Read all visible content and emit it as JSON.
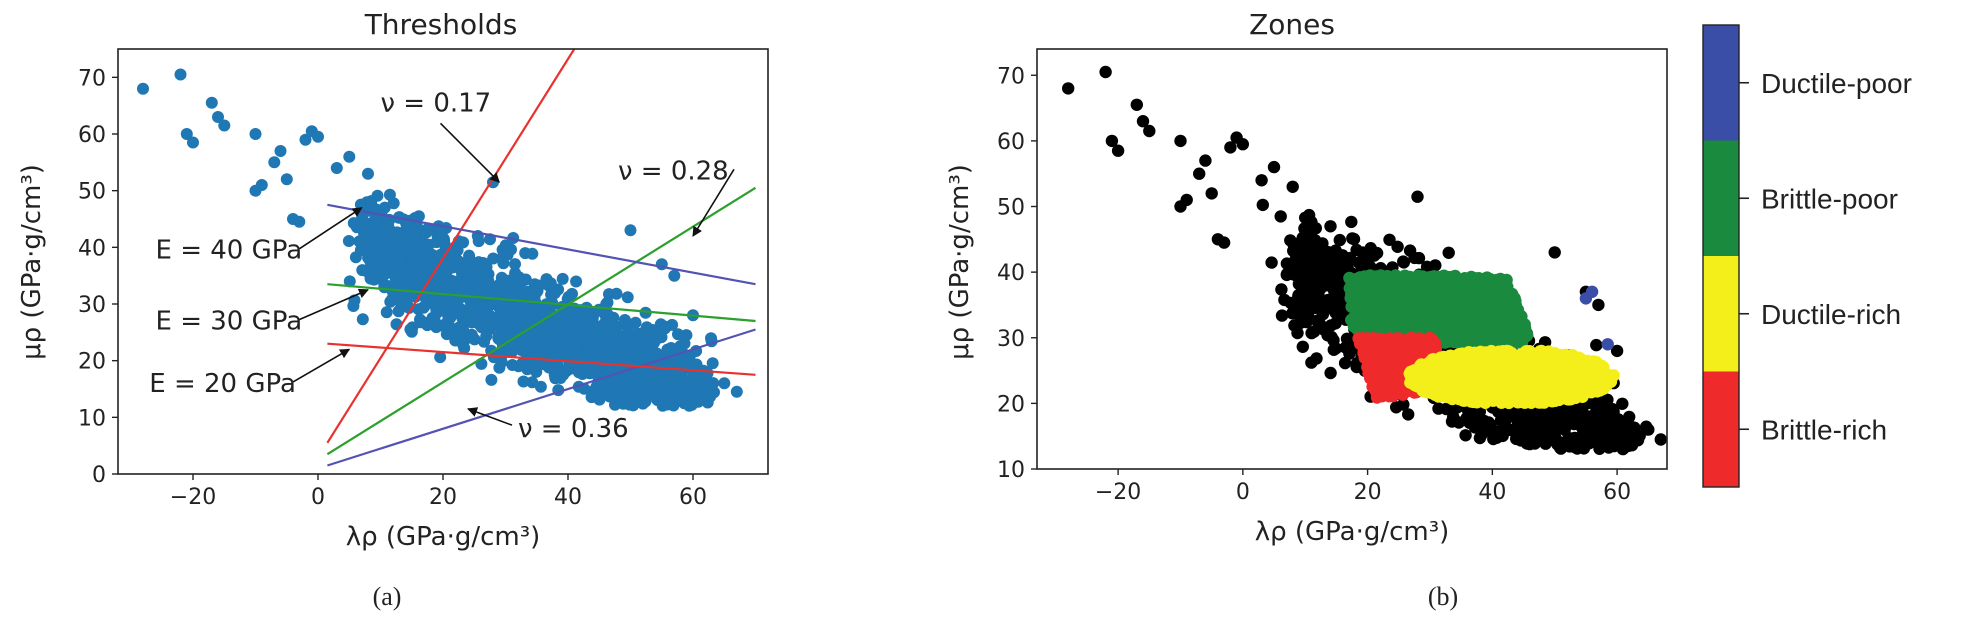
{
  "chart_data": [
    {
      "type": "scatter",
      "title": "Thresholds",
      "xlabel": "λρ (GPa·g/cm³)",
      "ylabel": "μρ (GPa·g/cm³)",
      "xlim": [
        -32,
        72
      ],
      "ylim": [
        0,
        75
      ],
      "xticks": [
        -20,
        0,
        20,
        40,
        60
      ],
      "yticks": [
        0,
        10,
        20,
        30,
        40,
        50,
        60,
        70
      ],
      "point_color": "#1f77b4",
      "cloud": {
        "regression": {
          "x0": 20,
          "y0": 34,
          "slope": -0.52
        },
        "x_range": [
          8,
          62
        ],
        "band_sd": 4.5,
        "count": 1500,
        "outliers": [
          [
            -28,
            68
          ],
          [
            -22,
            70.5
          ],
          [
            -21,
            60
          ],
          [
            -20,
            58.5
          ],
          [
            -17,
            65.5
          ],
          [
            -16,
            63
          ],
          [
            -15,
            61.5
          ],
          [
            -10,
            60
          ],
          [
            -10,
            50
          ],
          [
            -9,
            51
          ],
          [
            -7,
            55
          ],
          [
            -6,
            57
          ],
          [
            -5,
            52
          ],
          [
            -4,
            45
          ],
          [
            -3,
            44.5
          ],
          [
            -2,
            59
          ],
          [
            -1,
            60.5
          ],
          [
            0,
            59.5
          ],
          [
            3,
            54
          ],
          [
            5,
            56
          ],
          [
            8,
            53
          ],
          [
            65,
            16
          ],
          [
            67,
            14.5
          ],
          [
            28,
            51.5
          ],
          [
            50,
            43
          ],
          [
            55,
            37
          ],
          [
            57,
            35
          ],
          [
            60,
            28
          ]
        ]
      },
      "lines": [
        {
          "label": "ν = 0.17",
          "color": "#e8322e",
          "p1": [
            1.5,
            5.5
          ],
          "p2": [
            41,
            75
          ]
        },
        {
          "label": "ν = 0.28",
          "color": "#2ca02c",
          "p1": [
            1.5,
            3.5
          ],
          "p2": [
            70,
            50.5
          ]
        },
        {
          "label": "ν = 0.36",
          "color": "#5353b3",
          "p1": [
            1.5,
            1.5
          ],
          "p2": [
            70,
            25.5
          ]
        },
        {
          "label": "E = 40 GPa",
          "color": "#5353b3",
          "p1": [
            1.5,
            47.5
          ],
          "p2": [
            70,
            33.5
          ]
        },
        {
          "label": "E = 30 GPa",
          "color": "#2ca02c",
          "p1": [
            1.5,
            33.5
          ],
          "p2": [
            70,
            27
          ]
        },
        {
          "label": "E = 20 GPa",
          "color": "#e8322e",
          "p1": [
            1.5,
            23
          ],
          "p2": [
            70,
            17.5
          ]
        }
      ],
      "annotations": [
        {
          "text": "ν =  0.17",
          "text_at": [
            10,
            64
          ],
          "arrow_to": [
            29,
            51.5
          ]
        },
        {
          "text": "ν = 0.28",
          "text_at": [
            48,
            52
          ],
          "arrow_to": [
            60,
            42
          ]
        },
        {
          "text": "ν = 0.36",
          "text_at": [
            32,
            6.5
          ],
          "arrow_to": [
            24,
            11.5
          ]
        },
        {
          "text": "E = 40 GPa",
          "text_at": [
            -26,
            38
          ],
          "arrow_to": [
            7,
            47
          ]
        },
        {
          "text": "E = 30 GPa",
          "text_at": [
            -26,
            25.5
          ],
          "arrow_to": [
            8,
            32.5
          ]
        },
        {
          "text": "E = 20 GPa",
          "text_at": [
            -27,
            14.5
          ],
          "arrow_to": [
            5,
            22
          ]
        }
      ],
      "caption": "(a)"
    },
    {
      "type": "scatter",
      "title": "Zones",
      "xlabel": "λρ (GPa·g/cm³)",
      "ylabel": "μρ (GPa·g/cm³)",
      "xlim": [
        -33,
        68
      ],
      "ylim": [
        10,
        74
      ],
      "xticks": [
        -20,
        0,
        20,
        40,
        60
      ],
      "yticks": [
        10,
        20,
        30,
        40,
        50,
        60,
        70
      ],
      "zones": [
        {
          "name": "Ductile-poor",
          "color": "#3b4ea7",
          "x_range": [
            38,
            58
          ],
          "y_range": [
            26,
            37
          ]
        },
        {
          "name": "Brittle-poor",
          "color": "#1a8a3e",
          "x_range": [
            17,
            46
          ],
          "y_range": [
            29,
            39.5
          ]
        },
        {
          "name": "Ductile-rich",
          "color": "#f4ef1a",
          "x_range": [
            26,
            60
          ],
          "y_range": [
            20,
            28
          ]
        },
        {
          "name": "Brittle-rich",
          "color": "#ee2a2a",
          "x_range": [
            18,
            32
          ],
          "y_range": [
            20,
            30
          ]
        }
      ],
      "background_color": "#000000",
      "colorbar": {
        "labels": [
          "Ductile-poor",
          "Brittle-poor",
          "Ductile-rich",
          "Brittle-rich"
        ],
        "colors": [
          "#3b4ea7",
          "#1a8a3e",
          "#f4ef1a",
          "#ee2a2a"
        ]
      },
      "caption": "(b)"
    }
  ]
}
